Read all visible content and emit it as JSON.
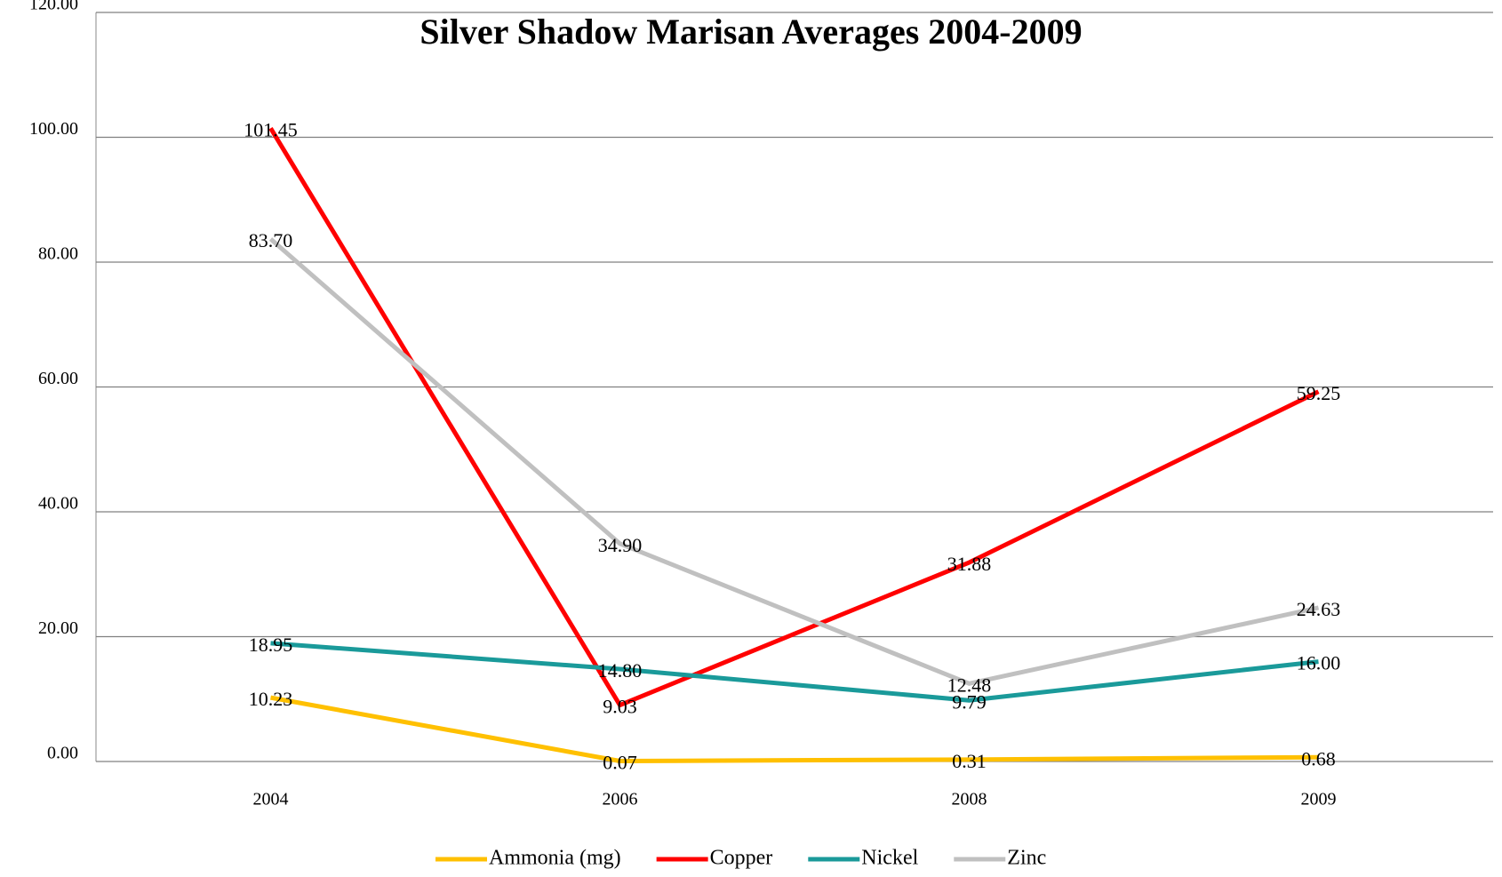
{
  "chart_data": {
    "type": "line",
    "title": "Silver Shadow Marisan Averages 2004-2009",
    "categories": [
      "2004",
      "2006",
      "2008",
      "2009"
    ],
    "series": [
      {
        "name": "Ammonia (mg)",
        "color": "#ffc000",
        "values": [
          10.23,
          0.07,
          0.31,
          0.68
        ],
        "value_labels": [
          "10.23",
          "0.07",
          "0.31",
          "0.68"
        ]
      },
      {
        "name": "Copper",
        "color": "#ff0000",
        "values": [
          101.45,
          9.03,
          31.88,
          59.25
        ],
        "value_labels": [
          "101.45",
          "9.03",
          "31.88",
          "59.25"
        ]
      },
      {
        "name": "Nickel",
        "color": "#1a9a9a",
        "values": [
          18.95,
          14.8,
          9.79,
          16.0
        ],
        "value_labels": [
          "18.95",
          "14.80",
          "9.79",
          "16.00"
        ]
      },
      {
        "name": "Zinc",
        "color": "#c0c0c0",
        "values": [
          83.7,
          34.9,
          12.48,
          24.63
        ],
        "value_labels": [
          "83.70",
          "34.90",
          "12.48",
          "24.63"
        ]
      }
    ],
    "ylim": [
      0,
      120
    ],
    "yticks": [
      {
        "value": 0,
        "label": "0.00"
      },
      {
        "value": 20,
        "label": "20.00"
      },
      {
        "value": 40,
        "label": "40.00"
      },
      {
        "value": 60,
        "label": "60.00"
      },
      {
        "value": 80,
        "label": "80.00"
      },
      {
        "value": 100,
        "label": "100.00"
      },
      {
        "value": 120,
        "label": "120.00"
      }
    ],
    "grid": true,
    "legend": "bottom"
  }
}
